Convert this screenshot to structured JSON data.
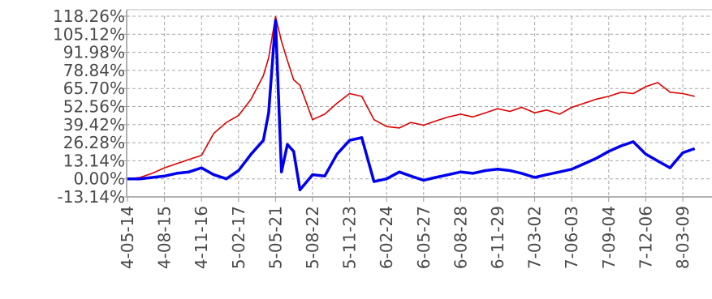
{
  "chart_data": {
    "type": "line",
    "title": "",
    "xlabel": "",
    "ylabel": "",
    "y_ticks": [
      "118.26%",
      "105.12%",
      "91.98%",
      "78.84%",
      "65.70%",
      "52.56%",
      "39.42%",
      "26.28%",
      "13.14%",
      "0.00%",
      "-13.14%"
    ],
    "y_tick_values": [
      118.26,
      105.12,
      91.98,
      78.84,
      65.7,
      52.56,
      39.42,
      26.28,
      13.14,
      0.0,
      -13.14
    ],
    "x_ticks": [
      "4-05-14",
      "4-08-15",
      "4-11-16",
      "5-02-17",
      "5-05-21",
      "5-08-22",
      "5-11-23",
      "6-02-24",
      "6-05-27",
      "6-08-28",
      "6-11-29",
      "7-03-02",
      "7-06-03",
      "7-09-04",
      "7-12-06",
      "8-03-09"
    ],
    "ylim": [
      -13.14,
      118.26
    ],
    "grid": true,
    "legend": "none",
    "colors": {
      "series_red": "#dd0000",
      "series_blue": "#0000ee",
      "grid": "#a9a9a9",
      "axis": "#999999",
      "tick_text": "#4a4a4a"
    },
    "series": [
      {
        "color": "#dd0000",
        "x": [
          "4-05-14",
          "4-06-15",
          "4-07-15",
          "4-08-15",
          "4-09-15",
          "4-10-15",
          "4-11-16",
          "4-12-16",
          "5-01-17",
          "5-02-17",
          "5-03-19",
          "5-04-20",
          "5-05-03",
          "5-05-21",
          "5-06-05",
          "5-06-20",
          "5-07-05",
          "5-07-21",
          "5-08-22",
          "5-09-22",
          "5-10-22",
          "5-11-23",
          "5-12-23",
          "6-01-23",
          "6-02-24",
          "6-03-26",
          "6-04-25",
          "6-05-27",
          "6-06-26",
          "6-07-28",
          "6-08-28",
          "6-09-28",
          "6-10-29",
          "6-11-29",
          "6-12-30",
          "7-01-30",
          "7-03-02",
          "7-04-01",
          "7-05-03",
          "7-06-03",
          "7-07-04",
          "7-08-04",
          "7-09-04",
          "7-10-05",
          "7-11-05",
          "7-12-06",
          "8-01-06",
          "8-02-07",
          "8-03-09",
          "8-04-09"
        ],
        "values": [
          0,
          1,
          4,
          8,
          11,
          14,
          17,
          33,
          41,
          46,
          58,
          75,
          88,
          118,
          100,
          86,
          72,
          68,
          43,
          47,
          55,
          62,
          60,
          43,
          38,
          37,
          41,
          39,
          42,
          45,
          47,
          45,
          48,
          51,
          49,
          52,
          48,
          50,
          47,
          52,
          55,
          58,
          60,
          63,
          62,
          67,
          70,
          63,
          62,
          60
        ]
      },
      {
        "color": "#0000ee",
        "x": [
          "4-05-14",
          "4-06-15",
          "4-07-15",
          "4-08-15",
          "4-09-15",
          "4-10-15",
          "4-11-16",
          "4-12-16",
          "5-01-17",
          "5-02-17",
          "5-03-19",
          "5-04-20",
          "5-05-03",
          "5-05-21",
          "5-06-05",
          "5-06-20",
          "5-07-05",
          "5-07-21",
          "5-08-22",
          "5-09-22",
          "5-10-22",
          "5-11-23",
          "5-12-23",
          "6-01-23",
          "6-02-24",
          "6-03-26",
          "6-04-25",
          "6-05-27",
          "6-06-26",
          "6-07-28",
          "6-08-28",
          "6-09-28",
          "6-10-29",
          "6-11-29",
          "6-12-30",
          "7-01-30",
          "7-03-02",
          "7-04-01",
          "7-05-03",
          "7-06-03",
          "7-07-04",
          "7-08-04",
          "7-09-04",
          "7-10-05",
          "7-11-05",
          "7-12-06",
          "8-01-06",
          "8-02-07",
          "8-03-09",
          "8-04-09"
        ],
        "values": [
          0,
          0,
          1,
          2,
          4,
          5,
          8,
          3,
          0,
          6,
          18,
          28,
          48,
          115,
          5,
          25,
          20,
          -8,
          3,
          2,
          18,
          28,
          30,
          -2,
          0,
          5,
          2,
          -1,
          1,
          3,
          5,
          4,
          6,
          7,
          6,
          4,
          1,
          3,
          5,
          7,
          11,
          15,
          20,
          24,
          27,
          18,
          13,
          8,
          19,
          22
        ]
      }
    ]
  }
}
